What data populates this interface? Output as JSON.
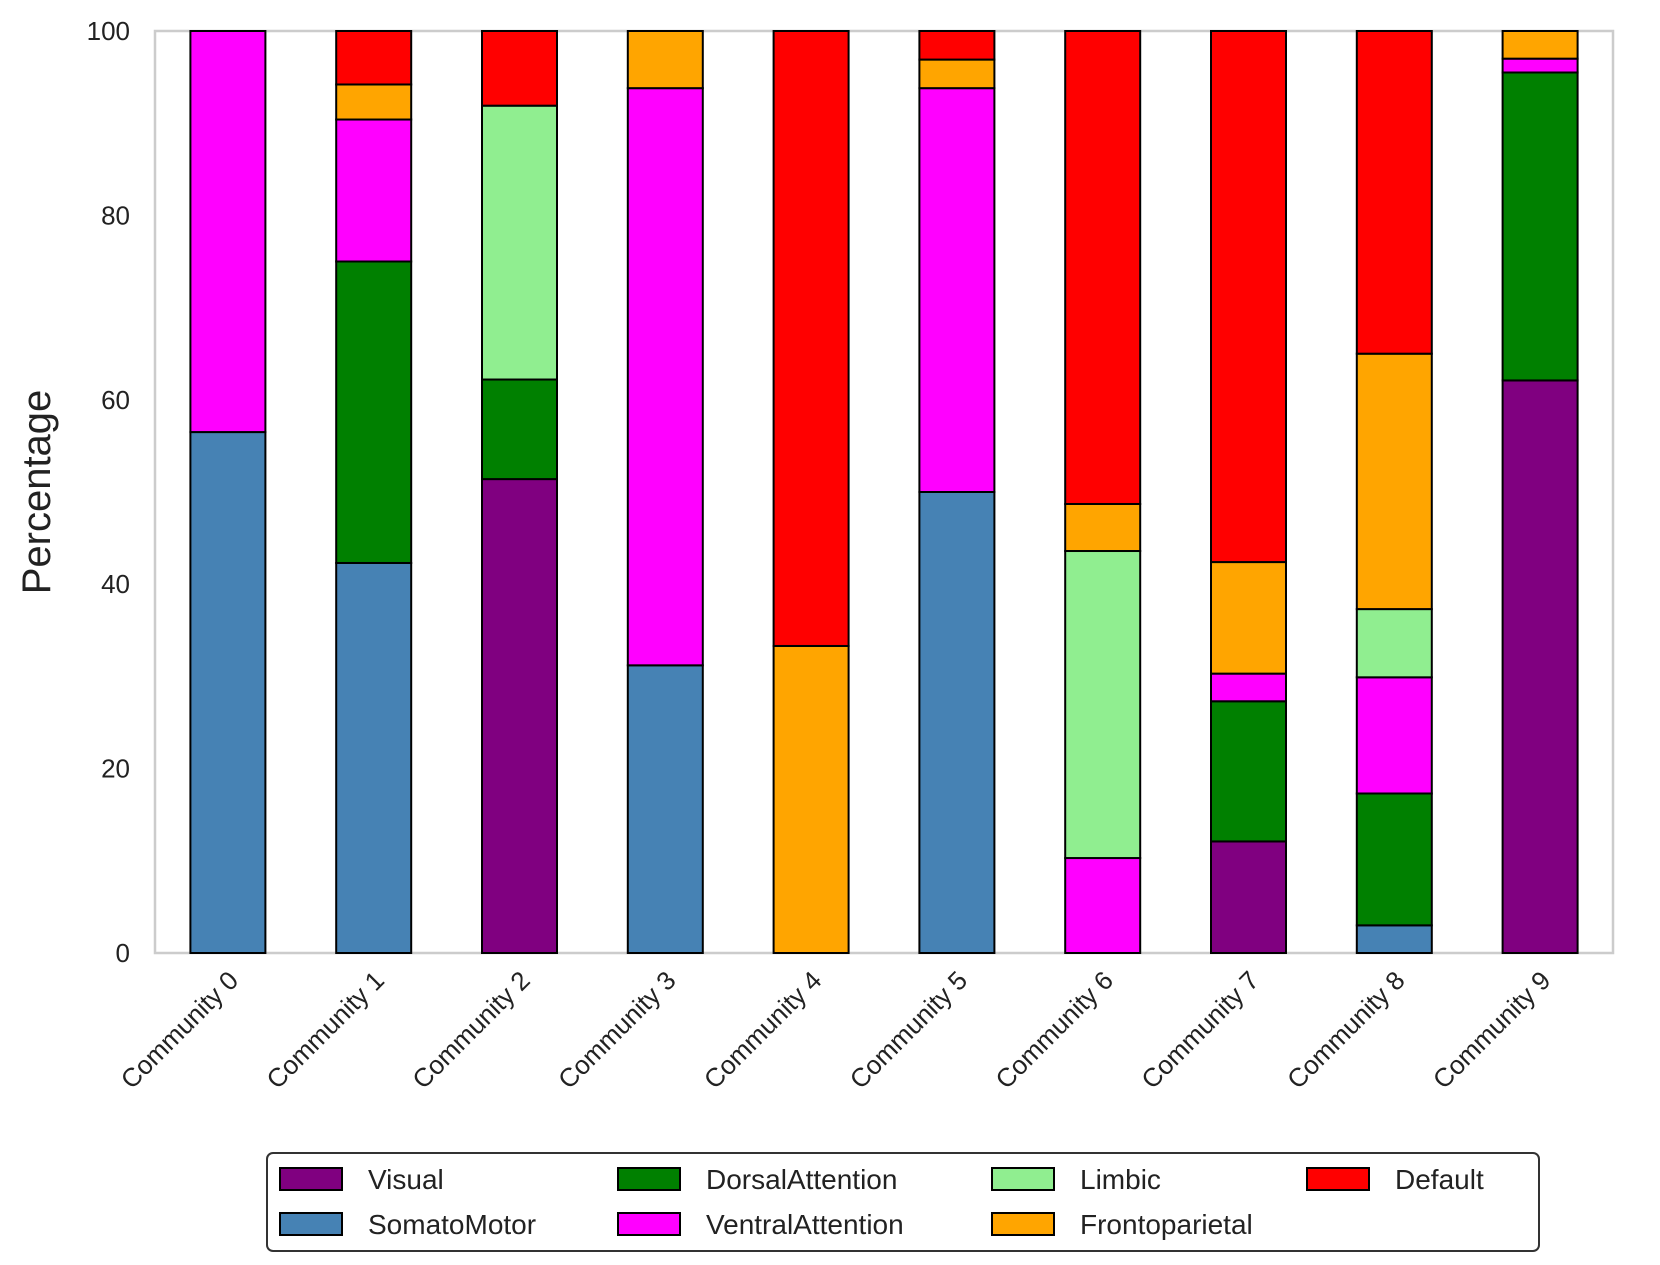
{
  "chart_data": {
    "type": "bar",
    "stacked": true,
    "title": "",
    "xlabel": "",
    "ylabel": "Percentage",
    "ylim": [
      0,
      100
    ],
    "yticks": [
      0,
      20,
      40,
      60,
      80,
      100
    ],
    "grid": false,
    "legend_position": "bottom-center",
    "categories": [
      "Community 0",
      "Community 1",
      "Community 2",
      "Community 3",
      "Community 4",
      "Community 5",
      "Community 6",
      "Community 7",
      "Community 8",
      "Community 9"
    ],
    "series": [
      {
        "name": "Visual",
        "color": "#800080",
        "values": [
          0,
          0,
          51.4,
          0,
          0,
          0,
          0,
          12.1,
          0,
          62.1
        ]
      },
      {
        "name": "SomatoMotor",
        "color": "#4682B4",
        "values": [
          56.5,
          42.3,
          0,
          31.2,
          0,
          50.0,
          0,
          0,
          3.0,
          0
        ]
      },
      {
        "name": "DorsalAttention",
        "color": "#008000",
        "values": [
          0,
          32.7,
          10.8,
          0,
          0,
          0,
          0,
          15.2,
          14.3,
          33.4
        ]
      },
      {
        "name": "VentralAttention",
        "color": "#FF00FF",
        "values": [
          43.5,
          15.4,
          0,
          62.6,
          0,
          43.8,
          10.3,
          3.0,
          12.6,
          1.5
        ]
      },
      {
        "name": "Limbic",
        "color": "#90EE90",
        "values": [
          0,
          0,
          29.7,
          0,
          0,
          0,
          33.3,
          0,
          7.4,
          0
        ]
      },
      {
        "name": "Frontoparietal",
        "color": "#FFA500",
        "values": [
          0,
          3.8,
          0,
          6.2,
          33.3,
          3.1,
          5.1,
          12.1,
          27.7,
          3.0
        ]
      },
      {
        "name": "Default",
        "color": "#FF0000",
        "values": [
          0,
          5.8,
          8.1,
          0,
          66.7,
          3.1,
          51.3,
          57.6,
          35.0,
          0
        ]
      }
    ]
  }
}
